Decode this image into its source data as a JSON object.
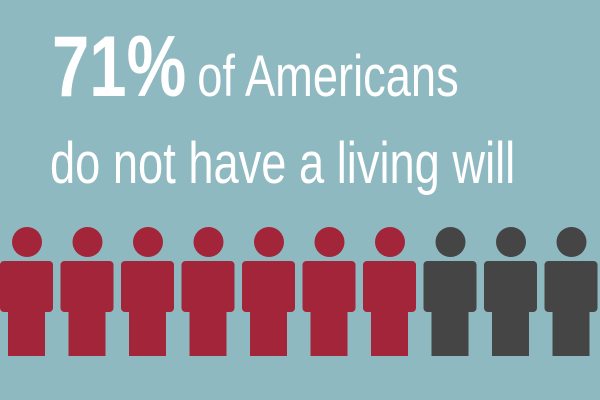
{
  "headline": {
    "percent": "71%",
    "line1_rest": "of Americans",
    "line2": "do not have a living will"
  },
  "pictograph": {
    "total": 10,
    "highlighted": 7,
    "icon": "person-icon",
    "colors": {
      "background": "#8fb9c0",
      "highlighted": "#a3253a",
      "other": "#454545",
      "text": "#ffffff"
    }
  }
}
